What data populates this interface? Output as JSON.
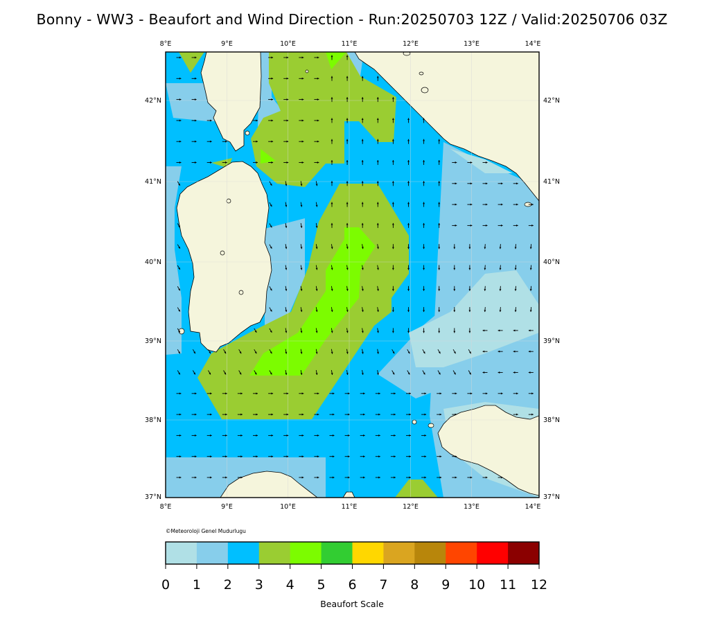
{
  "title": "Bonny - WW3 - Beaufort and Wind Direction - Run:20250703 12Z / Valid:20250706 03Z",
  "credit": "©Meteoroloji Genel Mudurlugu",
  "colorbar": {
    "label": "Beaufort Scale",
    "ticks": [
      "0",
      "1",
      "2",
      "3",
      "4",
      "5",
      "6",
      "7",
      "8",
      "9",
      "10",
      "11",
      "12"
    ],
    "colors": [
      "#b0e0e6",
      "#87ceeb",
      "#00bfff",
      "#9acd32",
      "#7cfc00",
      "#32cd32",
      "#ffd700",
      "#daa520",
      "#b8860b",
      "#ff4500",
      "#ff0000",
      "#8b0000"
    ]
  },
  "map": {
    "lon_labels": [
      "8°E",
      "9°E",
      "10°E",
      "11°E",
      "12°E",
      "13°E",
      "14°E"
    ],
    "lat_labels": [
      "42°N",
      "41°N",
      "40°N",
      "39°N",
      "38°N",
      "37°N"
    ],
    "land_color": "#f5f5dc",
    "sea_default": "#00bfff"
  }
}
